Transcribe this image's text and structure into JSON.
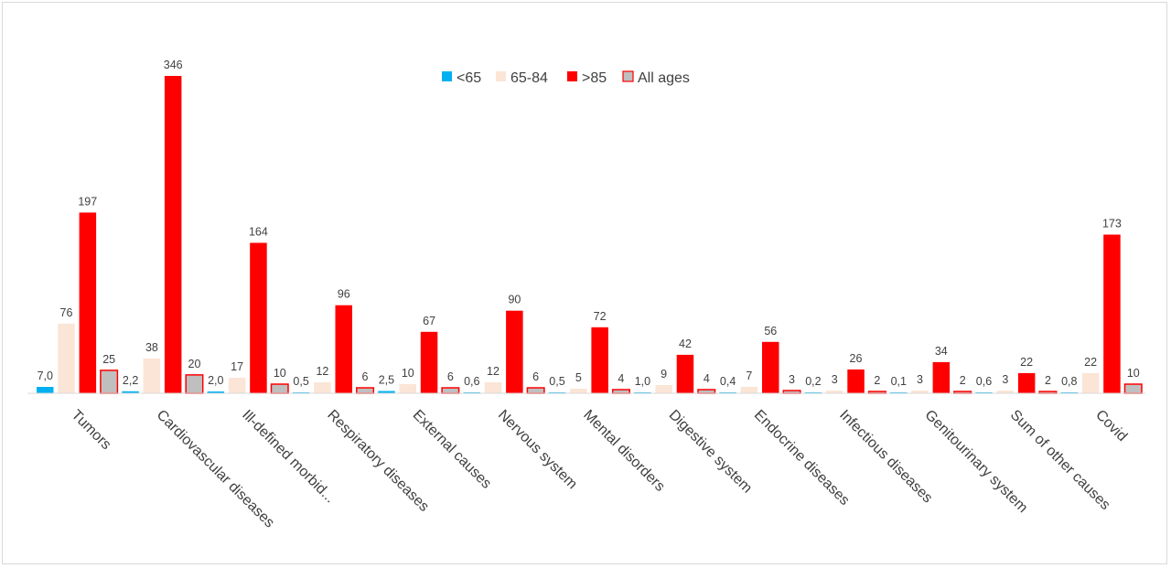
{
  "chart_data": {
    "type": "bar",
    "categories": [
      "Tumors",
      "Cardiovascular diseases",
      "Ill-defined morbid...",
      "Respiratory diseases",
      "External causes",
      "Nervous system",
      "Mental disorders",
      "Digestive system",
      "Endocrine diseases",
      "Infectious diseases",
      "Genitourinary system",
      "Sum of other causes",
      "Covid"
    ],
    "series": [
      {
        "name": "<65",
        "color": "#00b0f0",
        "values": [
          7.0,
          2.2,
          2.0,
          0.5,
          2.5,
          0.6,
          0.5,
          1.0,
          0.4,
          0.2,
          0.1,
          0.6,
          0.8
        ],
        "labels": [
          "7,0",
          "2,2",
          "2,0",
          "0,5",
          "2,5",
          "0,6",
          "0,5",
          "1,0",
          "0,4",
          "0,2",
          "0,1",
          "0,6",
          "0,8"
        ]
      },
      {
        "name": "65-84",
        "color": "#fbe5d6",
        "values": [
          76,
          38,
          17,
          12,
          10,
          12,
          5,
          9,
          7,
          3,
          3,
          3,
          22
        ],
        "labels": [
          "76",
          "38",
          "17",
          "12",
          "10",
          "12",
          "5",
          "9",
          "7",
          "3",
          "3",
          "3",
          "22"
        ]
      },
      {
        "name": ">85",
        "color": "#ff0000",
        "values": [
          197,
          346,
          164,
          96,
          67,
          90,
          72,
          42,
          56,
          26,
          34,
          22,
          173
        ],
        "labels": [
          "197",
          "346",
          "164",
          "96",
          "67",
          "90",
          "72",
          "42",
          "56",
          "26",
          "34",
          "22",
          "173"
        ]
      },
      {
        "name": "All ages",
        "color": "#bfbfbf",
        "border": "#ff0000",
        "values": [
          25,
          20,
          10,
          6,
          6,
          6,
          4,
          4,
          3,
          2,
          2,
          2,
          10
        ],
        "labels": [
          "25",
          "20",
          "10",
          "6",
          "6",
          "6",
          "4",
          "4",
          "3",
          "2",
          "2",
          "2",
          "10"
        ]
      }
    ],
    "ylim": [
      0,
      346
    ],
    "grid": false,
    "legend": "top-center",
    "title": "",
    "xlabel": "",
    "ylabel": ""
  }
}
